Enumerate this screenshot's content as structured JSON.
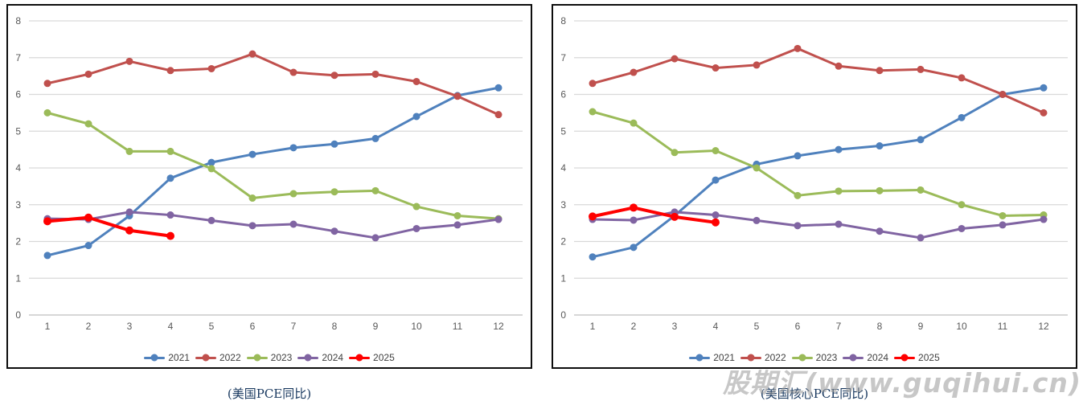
{
  "watermark": {
    "text": "股期汇(www.guqihui.cn)"
  },
  "legend_years": [
    "2021",
    "2022",
    "2023",
    "2024",
    "2025"
  ],
  "chart_data": [
    {
      "type": "line",
      "title": "(美国PCE同比)",
      "xlabel": "",
      "ylabel": "",
      "ylim": [
        0,
        8
      ],
      "grid": true,
      "legend_position": "bottom",
      "yticks": [
        "0",
        "1",
        "2",
        "3",
        "4",
        "5",
        "6",
        "7",
        "8"
      ],
      "categories": [
        "1",
        "2",
        "3",
        "4",
        "5",
        "6",
        "7",
        "8",
        "9",
        "10",
        "11",
        "12"
      ],
      "series": [
        {
          "name": "2021",
          "color": "#4F81BD",
          "values": [
            1.62,
            1.89,
            2.7,
            3.72,
            4.15,
            4.37,
            4.55,
            4.65,
            4.8,
            5.4,
            5.97,
            6.18
          ]
        },
        {
          "name": "2022",
          "color": "#C0504D",
          "values": [
            6.3,
            6.55,
            6.9,
            6.65,
            6.7,
            7.1,
            6.6,
            6.52,
            6.55,
            6.35,
            5.95,
            5.45
          ]
        },
        {
          "name": "2023",
          "color": "#9BBB59",
          "values": [
            5.5,
            5.2,
            4.45,
            4.45,
            3.98,
            3.18,
            3.3,
            3.35,
            3.38,
            2.95,
            2.7,
            2.62
          ]
        },
        {
          "name": "2024",
          "color": "#8064A2",
          "values": [
            2.62,
            2.6,
            2.8,
            2.72,
            2.57,
            2.43,
            2.47,
            2.28,
            2.1,
            2.35,
            2.45,
            2.6
          ]
        },
        {
          "name": "2025",
          "color": "#FF0000",
          "values": [
            2.55,
            2.65,
            2.3,
            2.15
          ]
        }
      ]
    },
    {
      "type": "line",
      "title": "(美国核心PCE同比)",
      "xlabel": "",
      "ylabel": "",
      "ylim": [
        0,
        8
      ],
      "grid": true,
      "legend_position": "bottom",
      "yticks": [
        "0",
        "1",
        "2",
        "3",
        "4",
        "5",
        "6",
        "7",
        "8"
      ],
      "categories": [
        "1",
        "2",
        "3",
        "4",
        "5",
        "6",
        "7",
        "8",
        "9",
        "10",
        "11",
        "12"
      ],
      "series": [
        {
          "name": "2021",
          "color": "#4F81BD",
          "values": [
            1.58,
            1.84,
            2.7,
            3.67,
            4.1,
            4.33,
            4.5,
            4.6,
            4.77,
            5.37,
            6.0,
            6.18
          ]
        },
        {
          "name": "2022",
          "color": "#C0504D",
          "values": [
            6.3,
            6.6,
            6.97,
            6.72,
            6.8,
            7.25,
            6.77,
            6.65,
            6.68,
            6.45,
            6.0,
            5.5
          ]
        },
        {
          "name": "2023",
          "color": "#9BBB59",
          "values": [
            5.53,
            5.22,
            4.42,
            4.47,
            4.0,
            3.25,
            3.37,
            3.38,
            3.4,
            3.0,
            2.7,
            2.72
          ]
        },
        {
          "name": "2024",
          "color": "#8064A2",
          "values": [
            2.6,
            2.58,
            2.8,
            2.72,
            2.57,
            2.43,
            2.47,
            2.28,
            2.1,
            2.35,
            2.45,
            2.6
          ]
        },
        {
          "name": "2025",
          "color": "#FF0000",
          "values": [
            2.68,
            2.92,
            2.67,
            2.52
          ]
        }
      ]
    }
  ]
}
